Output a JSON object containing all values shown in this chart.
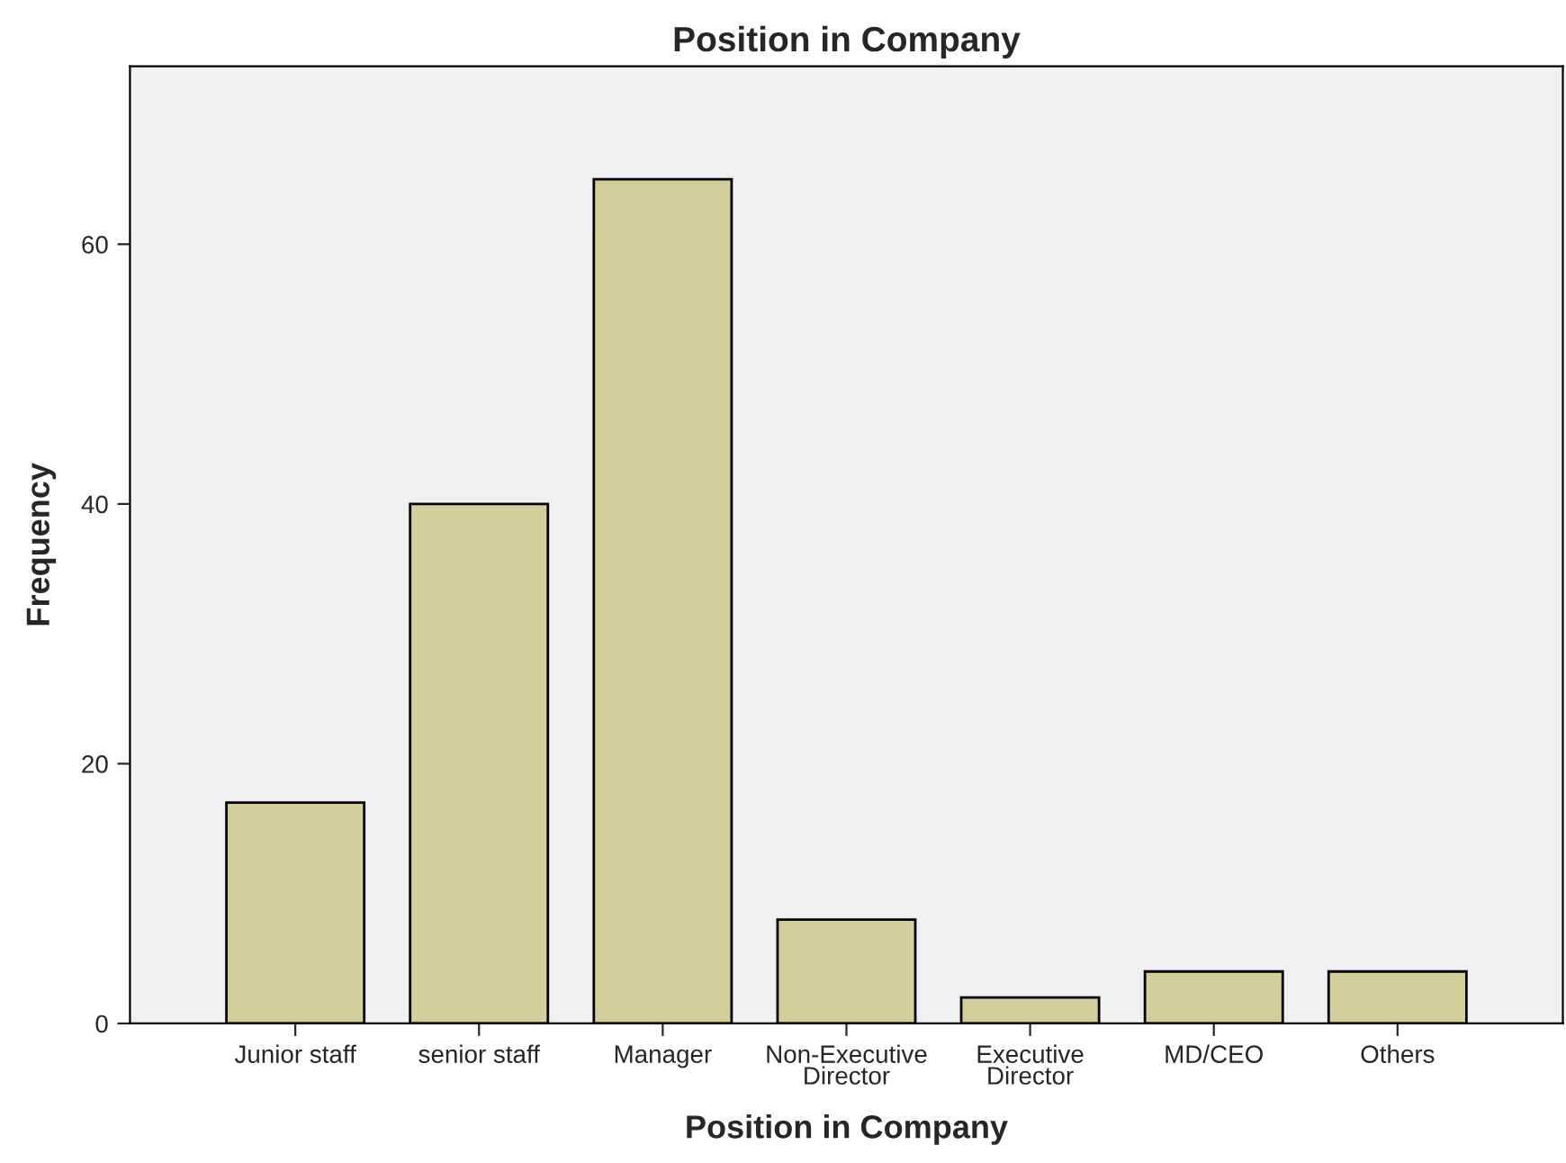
{
  "chart_data": {
    "type": "bar",
    "title": "Position in Company",
    "xlabel": "Position in Company",
    "ylabel": "Frequency",
    "categories": [
      "Junior staff",
      "senior staff",
      "Manager",
      "Non-Executive\nDirector",
      "Executive\nDirector",
      "MD/CEO",
      "Others"
    ],
    "values": [
      17,
      40,
      65,
      8,
      2,
      4,
      4
    ],
    "color": "#d3ce9a",
    "ylim": [
      0,
      73.7
    ],
    "yticks": [
      0,
      20,
      40,
      60
    ],
    "grid": false,
    "legend": false
  }
}
